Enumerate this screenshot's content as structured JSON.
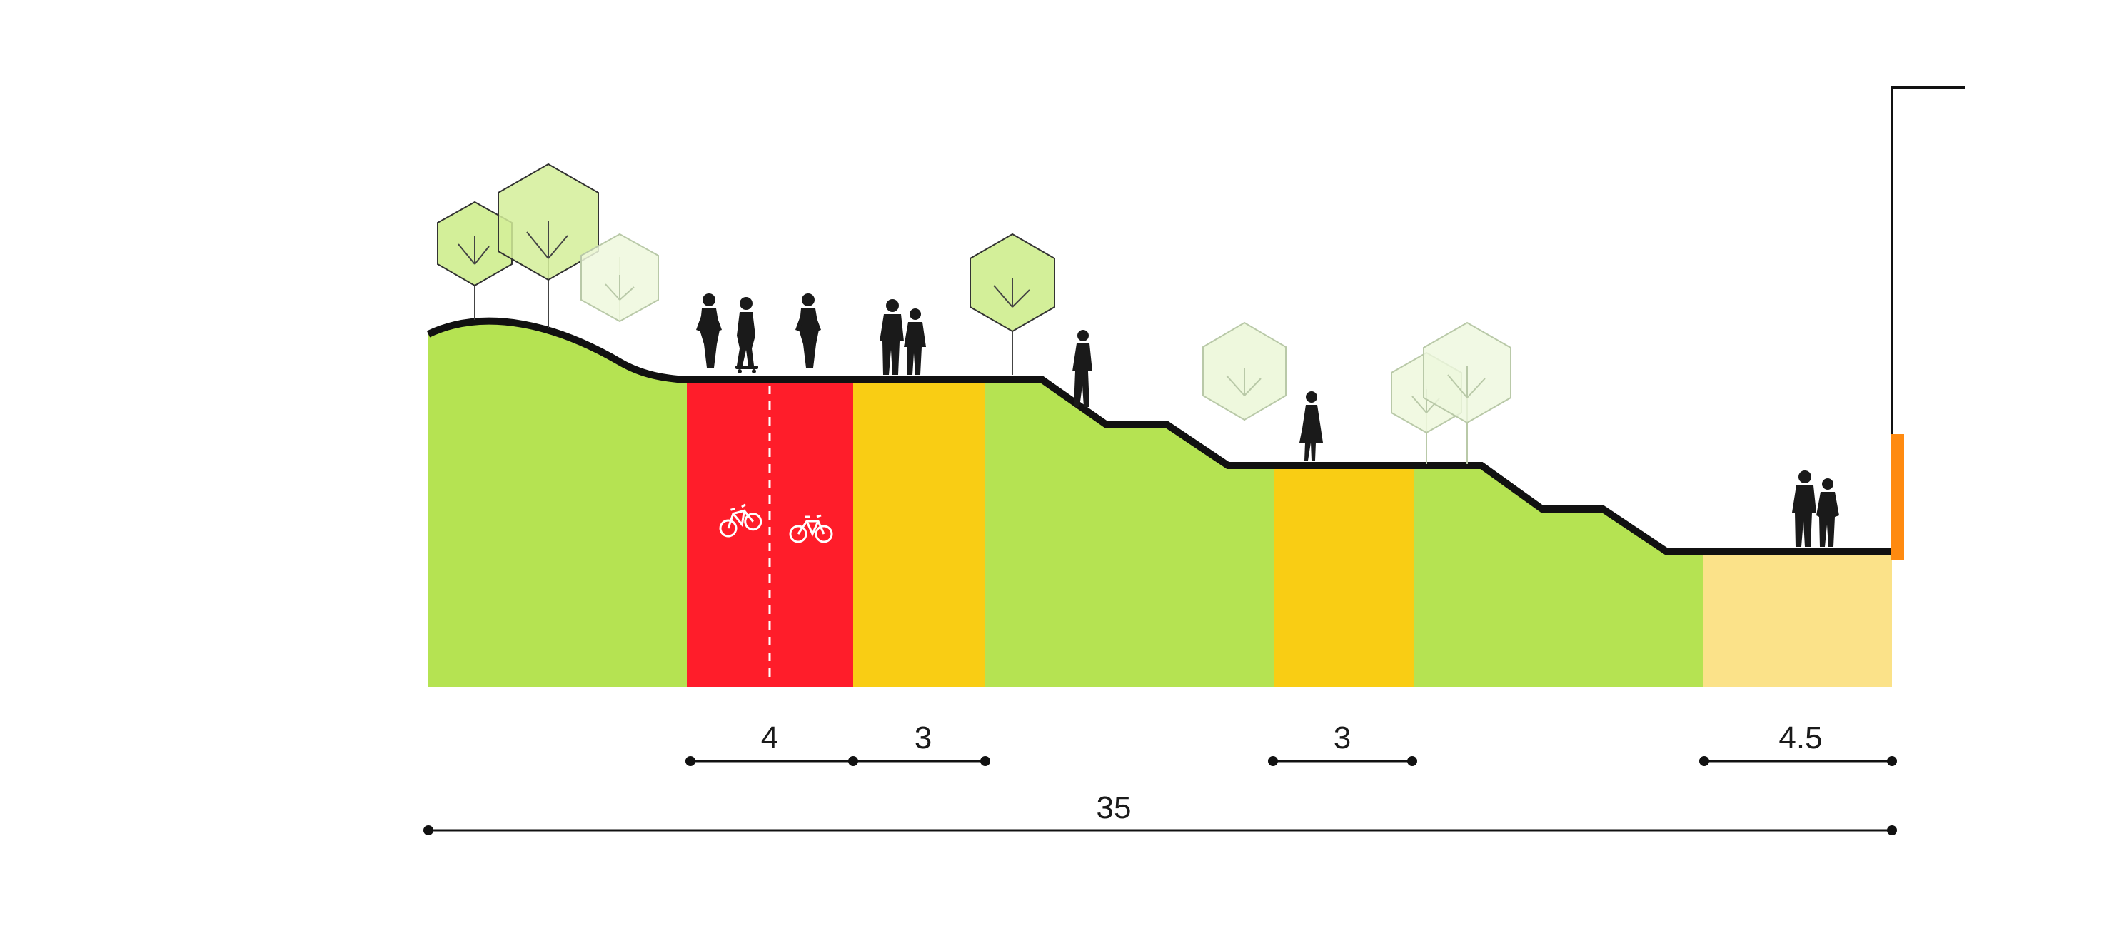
{
  "colors": {
    "grass": "#b5e352",
    "bike_lane": "#ff1d2a",
    "walkway": "#f9cd14",
    "plaza": "#fbe289",
    "facade_accent": "#ff8a10",
    "outline": "#111111",
    "tree_fill": "#d3ef99",
    "tree_fill_faded": "#eef8dd",
    "tree_stroke_faded": "#b9c9a8"
  },
  "icons": {
    "bike_lane_left": "bicycle-icon",
    "bike_lane_right": "bicycle-icon",
    "figures": "person-silhouette-icon",
    "trees": "tree-icon"
  },
  "dimensions": {
    "bike_lane_width": "4",
    "upper_walkway_width": "3",
    "middle_walkway_width": "3",
    "plaza_width": "4.5",
    "total_width": "35"
  }
}
